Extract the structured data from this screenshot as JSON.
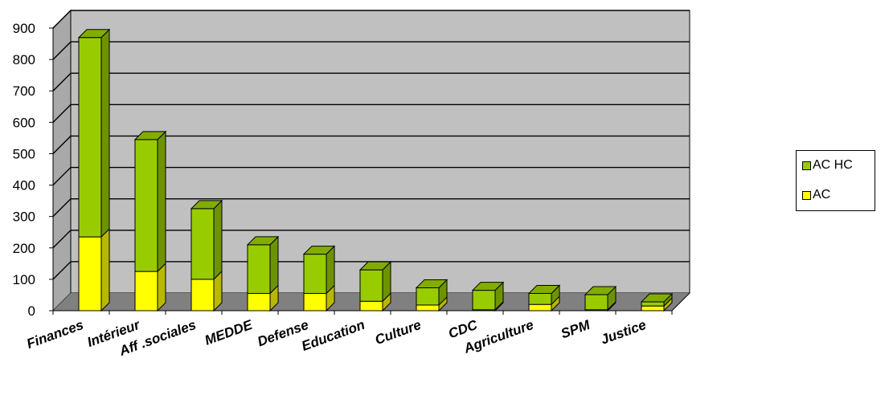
{
  "chart_data": {
    "type": "bar",
    "stacked": true,
    "three_d": true,
    "categories": [
      "Finances",
      "Intérieur",
      "Aff .sociales",
      "MEDDE",
      "Defense",
      "Education",
      "Culture",
      "CDC",
      "Agriculture",
      "SPM",
      "Justice"
    ],
    "series": [
      {
        "name": "AC",
        "color": "#ffff00",
        "values": [
          235,
          125,
          100,
          55,
          55,
          30,
          18,
          3,
          20,
          3,
          15
        ]
      },
      {
        "name": "AC HC",
        "color": "#99cc00",
        "values": [
          635,
          420,
          225,
          155,
          125,
          100,
          55,
          62,
          35,
          48,
          13
        ]
      }
    ],
    "ylim": [
      0,
      900
    ],
    "yticks": [
      "0",
      "100",
      "200",
      "300",
      "400",
      "500",
      "600",
      "700",
      "800",
      "900"
    ],
    "grid": true,
    "legend": {
      "position": "right",
      "order": [
        "AC HC",
        "AC"
      ]
    },
    "wall_color": "#c0c0c0",
    "floor_color": "#808080"
  }
}
